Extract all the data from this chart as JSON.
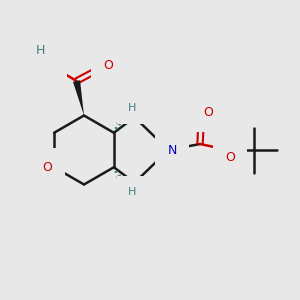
{
  "bg_color": "#e8e8e8",
  "bond_color": "#1a1a1a",
  "o_color": "#cc0000",
  "n_color": "#0000cc",
  "h_color": "#3d8080",
  "figsize": [
    3.0,
    3.0
  ],
  "dpi": 100,
  "xlim": [
    0.0,
    1.0
  ],
  "ylim": [
    0.0,
    1.0
  ]
}
